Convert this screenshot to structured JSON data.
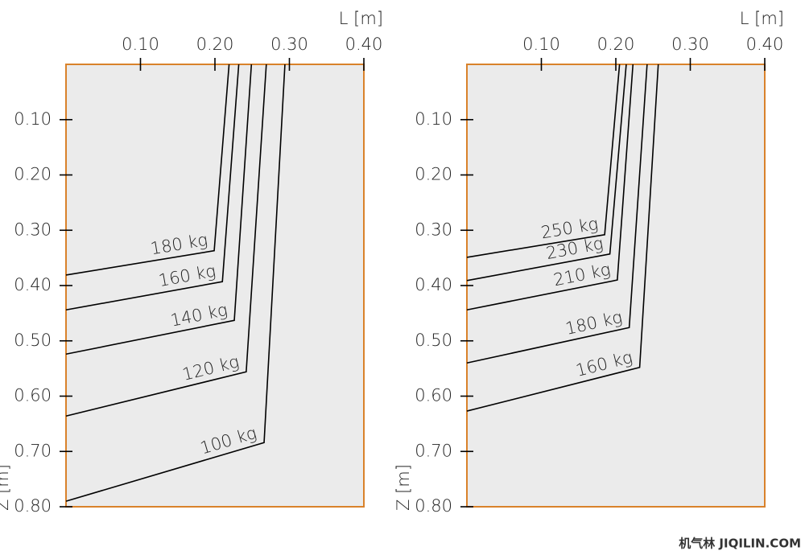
{
  "chart_data": [
    {
      "type": "line",
      "xlabel": "L [m]",
      "ylabel": "Z [m]",
      "x_axis_position": "top",
      "y_inverted": true,
      "xlim": [
        0,
        0.4
      ],
      "ylim": [
        0,
        0.8
      ],
      "xticks": [
        {
          "value": 0.1,
          "label": "0.10"
        },
        {
          "value": 0.2,
          "label": "0.20"
        },
        {
          "value": 0.3,
          "label": "0.30"
        },
        {
          "value": 0.4,
          "label": "0.40"
        }
      ],
      "yticks": [
        {
          "value": 0.1,
          "label": "0.10"
        },
        {
          "value": 0.2,
          "label": "0.20"
        },
        {
          "value": 0.3,
          "label": "0.30"
        },
        {
          "value": 0.4,
          "label": "0.40"
        },
        {
          "value": 0.5,
          "label": "0.50"
        },
        {
          "value": 0.6,
          "label": "0.60"
        },
        {
          "value": 0.7,
          "label": "0.70"
        },
        {
          "value": 0.8,
          "label": "0.80"
        }
      ],
      "series": [
        {
          "name": "180 kg",
          "color": "#000000",
          "x": [
            0.219,
            0.199,
            0
          ],
          "y": [
            0,
            0.337,
            0.381
          ]
        },
        {
          "name": "160 kg",
          "color": "#000000",
          "x": [
            0.232,
            0.21,
            0
          ],
          "y": [
            0,
            0.393,
            0.444
          ]
        },
        {
          "name": "140 kg",
          "color": "#000000",
          "x": [
            0.249,
            0.226,
            0
          ],
          "y": [
            0,
            0.463,
            0.524
          ]
        },
        {
          "name": "120 kg",
          "color": "#000000",
          "x": [
            0.269,
            0.242,
            0
          ],
          "y": [
            0,
            0.556,
            0.636
          ]
        },
        {
          "name": "100 kg",
          "color": "#000000",
          "x": [
            0.294,
            0.266,
            0
          ],
          "y": [
            0,
            0.684,
            0.79
          ]
        }
      ]
    },
    {
      "type": "line",
      "xlabel": "L [m]",
      "ylabel": "Z [m]",
      "x_axis_position": "top",
      "y_inverted": true,
      "xlim": [
        0,
        0.4
      ],
      "ylim": [
        0,
        0.8
      ],
      "xticks": [
        {
          "value": 0.1,
          "label": "0.10"
        },
        {
          "value": 0.2,
          "label": "0.20"
        },
        {
          "value": 0.3,
          "label": "0.30"
        },
        {
          "value": 0.4,
          "label": "0.40"
        }
      ],
      "yticks": [
        {
          "value": 0.1,
          "label": "0.10"
        },
        {
          "value": 0.2,
          "label": "0.20"
        },
        {
          "value": 0.3,
          "label": "0.30"
        },
        {
          "value": 0.4,
          "label": "0.40"
        },
        {
          "value": 0.5,
          "label": "0.50"
        },
        {
          "value": 0.6,
          "label": "0.60"
        },
        {
          "value": 0.7,
          "label": "0.70"
        },
        {
          "value": 0.8,
          "label": "0.80"
        }
      ],
      "series": [
        {
          "name": "250 kg",
          "color": "#000000",
          "x": [
            0.205,
            0.185,
            0
          ],
          "y": [
            0,
            0.308,
            0.349
          ]
        },
        {
          "name": "230 kg",
          "color": "#000000",
          "x": [
            0.214,
            0.192,
            0
          ],
          "y": [
            0,
            0.343,
            0.391
          ]
        },
        {
          "name": "210 kg",
          "color": "#000000",
          "x": [
            0.223,
            0.202,
            0
          ],
          "y": [
            0,
            0.39,
            0.444
          ]
        },
        {
          "name": "180 kg",
          "color": "#000000",
          "x": [
            0.242,
            0.218,
            0
          ],
          "y": [
            0,
            0.476,
            0.54
          ]
        },
        {
          "name": "160 kg",
          "color": "#000000",
          "x": [
            0.257,
            0.232,
            0
          ],
          "y": [
            0,
            0.548,
            0.627
          ]
        }
      ]
    }
  ],
  "watermark": "机气林 JIQILIN.COM"
}
